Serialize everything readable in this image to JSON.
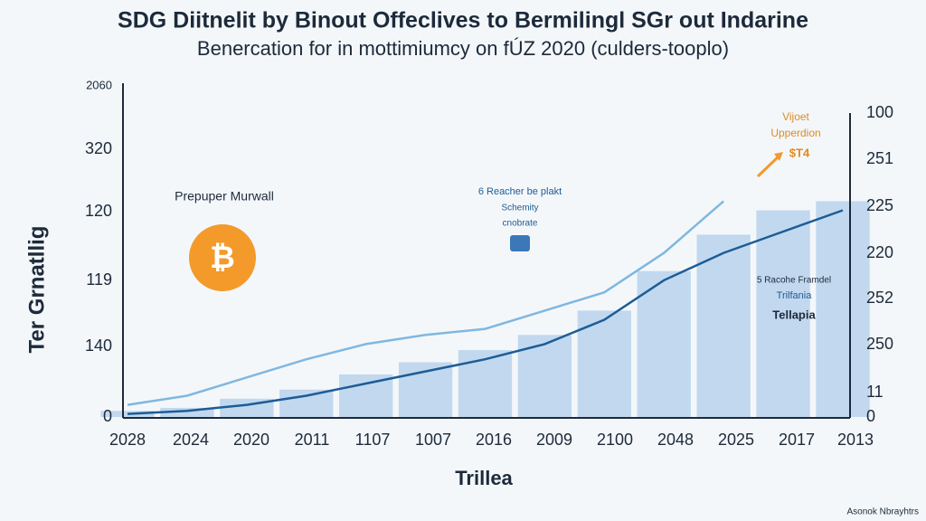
{
  "chart_data": {
    "type": "line",
    "title": "SDG Diitnelit by Binout Offeclives to Bermilingl SGr out Indarine",
    "subtitle": "Benercation for in mottimiumcy on fÚZ 2020 (culders-tooplo)",
    "x_label": "Trillea",
    "y_label": "Ter Grnatllig",
    "categories": [
      "2028",
      "2024",
      "2020",
      "2011",
      "1107",
      "1007",
      "2016",
      "2009",
      "2100",
      "2048",
      "2025",
      "2017",
      "2013"
    ],
    "ylim": [
      0,
      100
    ],
    "left_axis_labels": [
      "2060",
      "320",
      "120",
      "119",
      "140",
      "0"
    ],
    "right_axis_labels": [
      "100",
      "251",
      "225",
      "220",
      "252",
      "250",
      "11",
      "0"
    ],
    "bars": {
      "color": "#b7d2ec",
      "values": [
        2,
        3,
        6,
        9,
        14,
        18,
        22,
        27,
        35,
        48,
        60,
        68,
        71
      ]
    },
    "series": [
      {
        "color": "#7fb8e0",
        "values": [
          4,
          7,
          13,
          19,
          24,
          27,
          29,
          35,
          41,
          54,
          71,
          null,
          null
        ]
      },
      {
        "color": "#1d5c96",
        "values": [
          1,
          2,
          4,
          7,
          11,
          15,
          19,
          24,
          32,
          45,
          54,
          61,
          68
        ]
      }
    ],
    "annotations": [
      "Prepuper Murwall",
      "6 Reacher be plakt",
      "Schemity",
      "cnobrate",
      "Vijoet",
      "Upperdion",
      "$T4",
      "5 Racohe Framdel",
      "Trilfania",
      "Tellapia"
    ],
    "icon_label": "₿",
    "credit": "Asonok Nbrayhtrs"
  }
}
